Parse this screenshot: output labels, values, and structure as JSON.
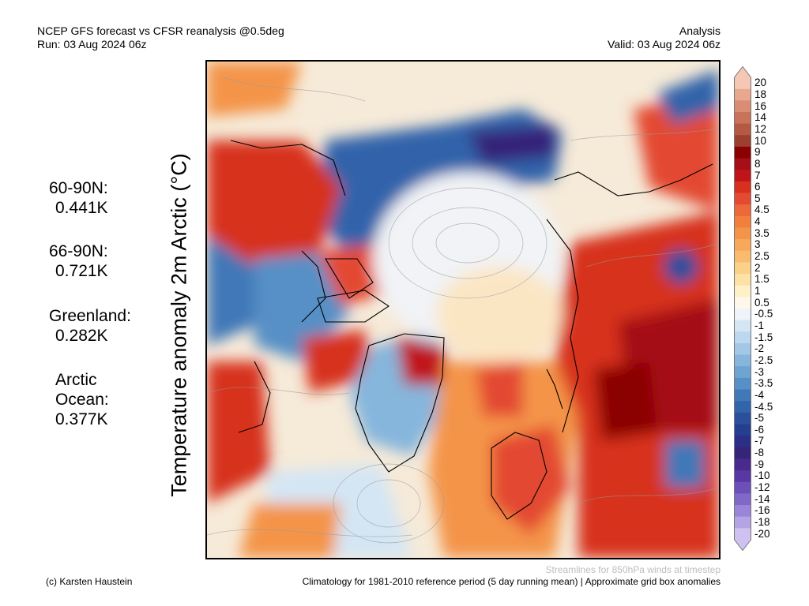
{
  "header": {
    "line1": "NCEP GFS forecast vs CFSR reanalysis @0.5deg",
    "line2": "Run: 03 Aug 2024 06z",
    "right1": "Analysis",
    "right2": "Valid: 03 Aug 2024 06z"
  },
  "title": "Temperature anomaly 2m Arctic (°C)",
  "stats": [
    {
      "name": "60-90N:",
      "value": "0.441K"
    },
    {
      "name": "66-90N:",
      "value": "0.721K"
    },
    {
      "name": "Greenland:",
      "value": "0.282K"
    },
    {
      "name": "Arctic Ocean:",
      "value": "0.377K"
    }
  ],
  "colorbar": {
    "labels": [
      "20",
      "18",
      "16",
      "14",
      "12",
      "10",
      "9",
      "8",
      "7",
      "6",
      "5",
      "4.5",
      "4",
      "3.5",
      "3",
      "2.5",
      "2",
      "1.5",
      "1",
      "0.5",
      "-0.5",
      "-1",
      "-1.5",
      "-2",
      "-2.5",
      "-3",
      "-3.5",
      "-4",
      "-4.5",
      "-5",
      "-6",
      "-7",
      "-8",
      "-9",
      "-10",
      "-12",
      "-14",
      "-16",
      "-18",
      "-20"
    ],
    "colors": [
      "#f4c8b4",
      "#e8a88e",
      "#d98e74",
      "#c8735a",
      "#b45a42",
      "#9c3f2e",
      "#8b0000",
      "#a50f15",
      "#c0141a",
      "#d7301f",
      "#e34a33",
      "#ec6838",
      "#f0803c",
      "#f4944a",
      "#f7a85a",
      "#f9bc6e",
      "#fbd088",
      "#fde2a6",
      "#fef0c8",
      "#fdf8ea",
      "#eef4fa",
      "#d4e6f4",
      "#bcd8ee",
      "#a2c8e6",
      "#86b6dc",
      "#6ea4d2",
      "#5690c6",
      "#4078b8",
      "#3264aa",
      "#2a509c",
      "#243f8f",
      "#2b2f86",
      "#362479",
      "#4a2a8c",
      "#5a38a4",
      "#6c50b8",
      "#8068c8",
      "#9a86d8",
      "#b4a4e4",
      "#cfc2f0"
    ]
  },
  "footer": {
    "credit": "(c) Karsten Haustein",
    "streamlines": "Streamlines for 850hPa winds at timestep",
    "climatology": "Climatology for 1981-2010 reference period (5 day running mean) | Approximate grid box anomalies"
  }
}
